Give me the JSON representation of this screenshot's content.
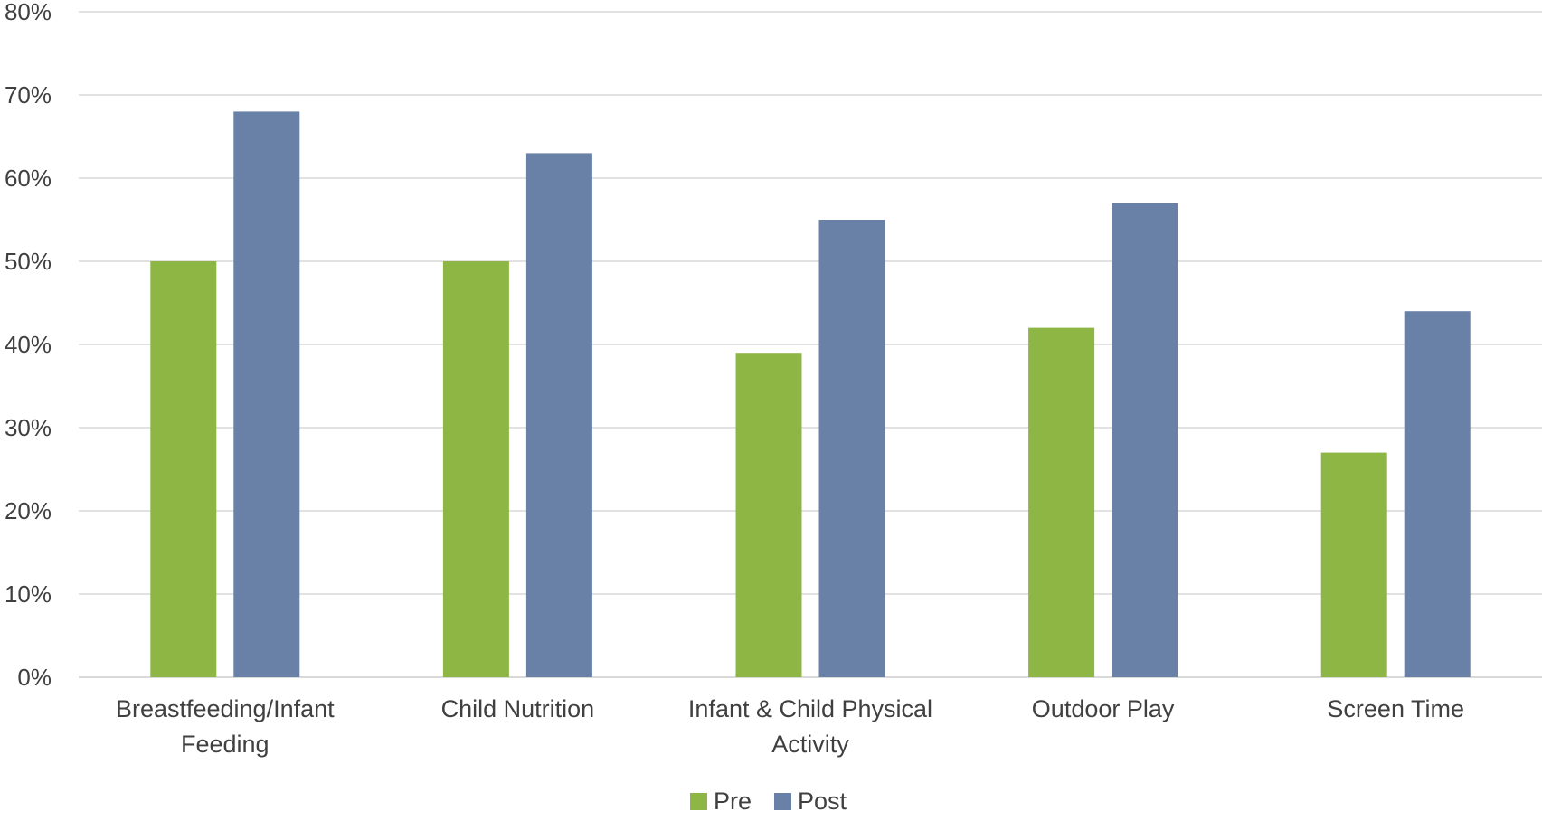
{
  "chart_data": {
    "type": "bar",
    "categories": [
      [
        "Breastfeeding/Infant",
        "Feeding"
      ],
      [
        "Child Nutrition"
      ],
      [
        "Infant & Child Physical",
        "Activity"
      ],
      [
        "Outdoor Play"
      ],
      [
        "Screen Time"
      ]
    ],
    "series": [
      {
        "name": "Pre",
        "color": "#8db644",
        "values": [
          0.5,
          0.5,
          0.39,
          0.42,
          0.27
        ]
      },
      {
        "name": "Post",
        "color": "#6a81a7",
        "values": [
          0.68,
          0.63,
          0.55,
          0.57,
          0.44
        ]
      }
    ],
    "ylim": [
      0,
      0.8
    ],
    "yticks": [
      "0%",
      "10%",
      "20%",
      "30%",
      "40%",
      "50%",
      "60%",
      "70%",
      "80%"
    ],
    "grid": true,
    "legend_position": "bottom-center",
    "title": "",
    "xlabel": "",
    "ylabel": ""
  }
}
